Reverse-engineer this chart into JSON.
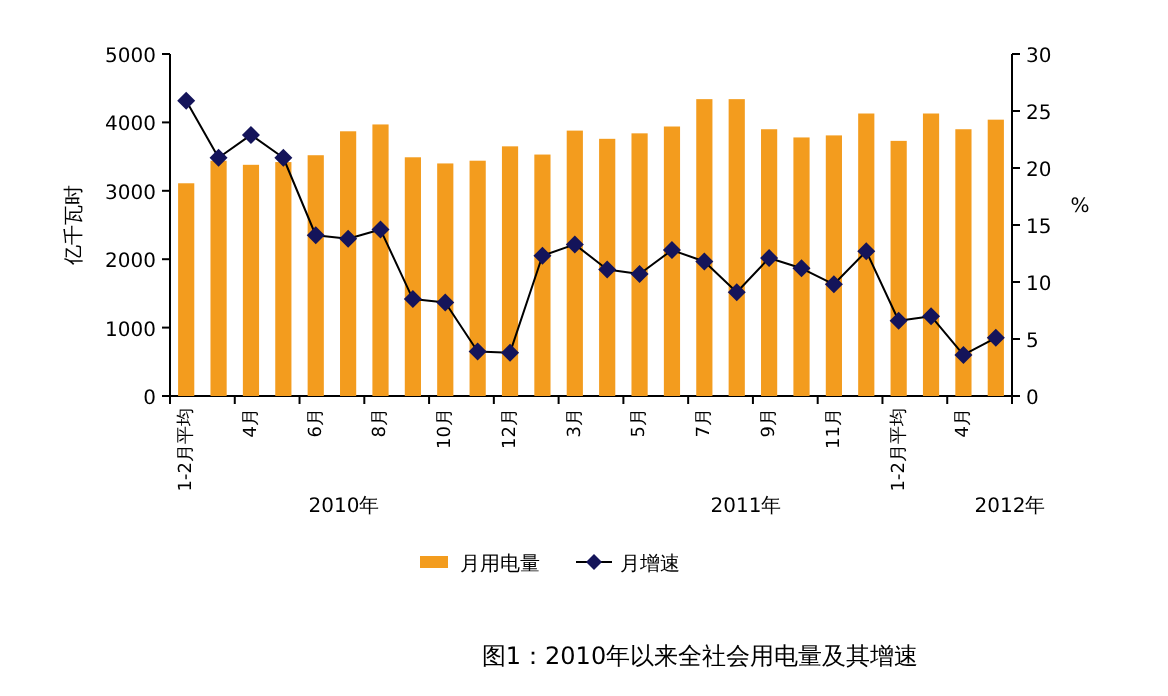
{
  "chart_data": {
    "type": "bar",
    "ylabel": "亿千瓦时",
    "y2label": "%",
    "categories": [
      "1-2月平均",
      null,
      "4月",
      null,
      "6月",
      null,
      "8月",
      null,
      "10月",
      null,
      "12月",
      null,
      "3月",
      null,
      "5月",
      null,
      "7月",
      null,
      "9月",
      null,
      "11月",
      null,
      "1-2月平均",
      null,
      "4月",
      null
    ],
    "series": [
      {
        "name": "月用电量",
        "color": "#f39c1e",
        "values": [
          3110,
          3440,
          3380,
          3420,
          3520,
          3870,
          3970,
          3490,
          3400,
          3440,
          3650,
          3530,
          3880,
          3760,
          3840,
          3940,
          4340,
          4340,
          3900,
          3780,
          3810,
          4130,
          3730,
          4130,
          3900,
          4040
        ]
      },
      {
        "name": "月增速",
        "type": "line",
        "axis": "y2",
        "color": "#000000",
        "marker": "diamond",
        "values": [
          25.9,
          20.9,
          22.9,
          20.9,
          14.1,
          13.8,
          14.6,
          8.5,
          8.2,
          3.9,
          3.8,
          12.3,
          13.3,
          11.1,
          10.7,
          12.8,
          11.8,
          9.1,
          12.1,
          11.2,
          9.8,
          12.7,
          6.6,
          7.0,
          3.6,
          5.1
        ]
      }
    ],
    "ylim": [
      0,
      5000
    ],
    "yticks": [
      0,
      1000,
      2000,
      3000,
      4000,
      5000
    ],
    "y2lim": [
      0,
      30
    ],
    "y2ticks": [
      0,
      5,
      10,
      15,
      20,
      25,
      30
    ],
    "grid": false,
    "legend": "bottom",
    "annotations": [
      "2010年",
      "2011年",
      "2012年",
      "图1：2010年以来全社会用电量及其增速"
    ]
  }
}
